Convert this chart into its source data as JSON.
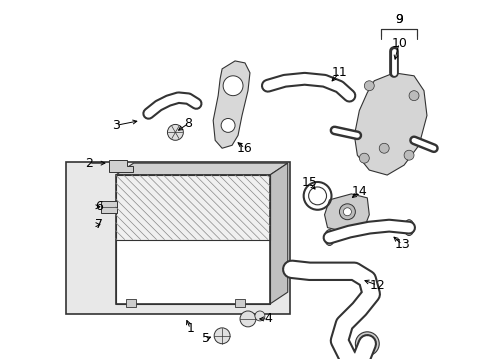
{
  "bg_color": "#ffffff",
  "lc": "#333333",
  "gray_light": "#e8e8e8",
  "gray_mid": "#cccccc",
  "gray_dark": "#aaaaaa",
  "hatch_color": "#999999",
  "figsize": [
    4.89,
    3.6
  ],
  "dpi": 100
}
